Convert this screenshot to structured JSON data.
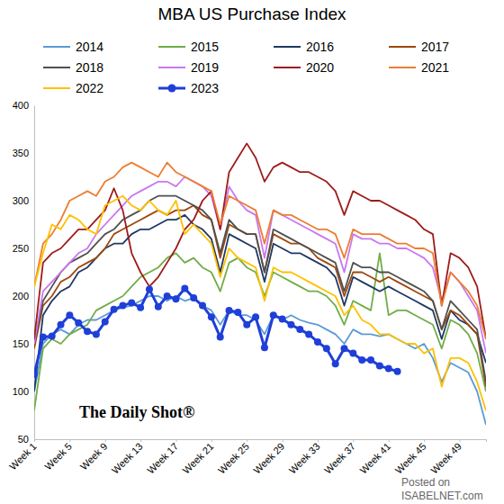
{
  "chart_data": {
    "type": "line",
    "title": "MBA US Purchase Index",
    "x": [
      1,
      2,
      3,
      4,
      5,
      6,
      7,
      8,
      9,
      10,
      11,
      12,
      13,
      14,
      15,
      16,
      17,
      18,
      19,
      20,
      21,
      22,
      23,
      24,
      25,
      26,
      27,
      28,
      29,
      30,
      31,
      32,
      33,
      34,
      35,
      36,
      37,
      38,
      39,
      40,
      41,
      42,
      43,
      44,
      45,
      46,
      47,
      48,
      49,
      50,
      51,
      52
    ],
    "xlim": [
      1,
      52
    ],
    "xticks": [
      {
        "value": 1,
        "label": "Week 1"
      },
      {
        "value": 5,
        "label": "Week 5"
      },
      {
        "value": 9,
        "label": "Week 9"
      },
      {
        "value": 13,
        "label": "Week 13"
      },
      {
        "value": 17,
        "label": "Week 17"
      },
      {
        "value": 21,
        "label": "Week 21"
      },
      {
        "value": 25,
        "label": "Week 25"
      },
      {
        "value": 29,
        "label": "Week 29"
      },
      {
        "value": 33,
        "label": "Week 33"
      },
      {
        "value": 37,
        "label": "Week 37"
      },
      {
        "value": 41,
        "label": "Week 41"
      },
      {
        "value": 45,
        "label": "Week 45"
      },
      {
        "value": 49,
        "label": "Week 49"
      }
    ],
    "ylim": [
      50,
      400
    ],
    "yticks": [
      50,
      100,
      150,
      200,
      250,
      300,
      350,
      400
    ],
    "grid": false,
    "legend": "top",
    "series": [
      {
        "name": "2014",
        "color": "#5b9bd5",
        "values": [
          100,
          150,
          160,
          165,
          160,
          170,
          175,
          175,
          180,
          185,
          188,
          190,
          195,
          200,
          200,
          195,
          200,
          195,
          198,
          190,
          185,
          170,
          185,
          180,
          180,
          175,
          160,
          180,
          175,
          180,
          175,
          172,
          170,
          165,
          160,
          150,
          165,
          160,
          160,
          158,
          160,
          155,
          150,
          145,
          150,
          135,
          110,
          130,
          125,
          120,
          100,
          65
        ]
      },
      {
        "name": "2015",
        "color": "#70ad47",
        "values": [
          80,
          145,
          155,
          150,
          160,
          165,
          170,
          185,
          190,
          195,
          200,
          210,
          220,
          225,
          230,
          240,
          245,
          235,
          240,
          230,
          225,
          205,
          235,
          240,
          230,
          225,
          200,
          225,
          220,
          215,
          210,
          205,
          205,
          200,
          190,
          170,
          195,
          190,
          185,
          245,
          180,
          185,
          185,
          180,
          175,
          170,
          145,
          175,
          170,
          160,
          140,
          100
        ]
      },
      {
        "name": "2016",
        "color": "#1f3864",
        "values": [
          100,
          180,
          195,
          205,
          210,
          225,
          230,
          240,
          250,
          255,
          255,
          265,
          270,
          270,
          275,
          280,
          280,
          285,
          275,
          270,
          260,
          225,
          265,
          260,
          255,
          250,
          215,
          255,
          250,
          245,
          245,
          240,
          235,
          230,
          220,
          190,
          220,
          215,
          210,
          205,
          210,
          205,
          200,
          195,
          190,
          185,
          155,
          185,
          175,
          170,
          160,
          130
        ]
      },
      {
        "name": "2017",
        "color": "#9e480e",
        "values": [
          145,
          190,
          200,
          215,
          220,
          230,
          235,
          240,
          250,
          265,
          270,
          275,
          280,
          285,
          290,
          285,
          290,
          290,
          295,
          285,
          280,
          240,
          275,
          270,
          265,
          265,
          225,
          265,
          260,
          255,
          255,
          250,
          240,
          235,
          230,
          200,
          225,
          225,
          220,
          215,
          220,
          215,
          210,
          205,
          200,
          195,
          165,
          185,
          180,
          170,
          160,
          105
        ]
      },
      {
        "name": "2018",
        "color": "#505050",
        "values": [
          150,
          195,
          210,
          225,
          235,
          240,
          245,
          255,
          265,
          270,
          280,
          285,
          290,
          300,
          305,
          305,
          305,
          300,
          295,
          290,
          280,
          245,
          280,
          270,
          265,
          265,
          225,
          270,
          265,
          260,
          255,
          250,
          245,
          240,
          235,
          205,
          235,
          230,
          230,
          225,
          225,
          220,
          215,
          210,
          205,
          195,
          165,
          195,
          185,
          175,
          165,
          110
        ]
      },
      {
        "name": "2019",
        "color": "#c878f0",
        "values": [
          150,
          205,
          215,
          225,
          235,
          245,
          250,
          265,
          275,
          285,
          295,
          305,
          310,
          315,
          320,
          320,
          315,
          325,
          320,
          315,
          305,
          270,
          315,
          300,
          290,
          285,
          240,
          290,
          285,
          280,
          275,
          270,
          265,
          260,
          255,
          225,
          265,
          260,
          260,
          255,
          255,
          250,
          250,
          245,
          240,
          230,
          195,
          225,
          215,
          200,
          185,
          140
        ]
      },
      {
        "name": "2020",
        "color": "#9e1b1b",
        "values": [
          155,
          235,
          245,
          250,
          260,
          270,
          270,
          280,
          290,
          313,
          290,
          245,
          225,
          210,
          220,
          235,
          250,
          270,
          280,
          300,
          310,
          270,
          330,
          345,
          360,
          345,
          320,
          335,
          340,
          335,
          330,
          330,
          325,
          320,
          310,
          285,
          310,
          305,
          300,
          300,
          295,
          290,
          285,
          280,
          270,
          265,
          190,
          245,
          240,
          230,
          210,
          155
        ]
      },
      {
        "name": "2021",
        "color": "#ed7d31",
        "values": [
          210,
          255,
          265,
          280,
          300,
          305,
          310,
          305,
          320,
          325,
          335,
          340,
          335,
          330,
          325,
          340,
          330,
          325,
          320,
          315,
          310,
          275,
          305,
          300,
          295,
          290,
          255,
          290,
          285,
          285,
          280,
          275,
          270,
          270,
          265,
          240,
          270,
          265,
          265,
          265,
          260,
          255,
          255,
          250,
          250,
          245,
          190,
          225,
          215,
          205,
          190,
          155
        ]
      },
      {
        "name": "2022",
        "color": "#ffc000",
        "values": [
          210,
          245,
          275,
          270,
          285,
          280,
          270,
          265,
          295,
          300,
          305,
          295,
          290,
          300,
          290,
          285,
          300,
          265,
          275,
          265,
          255,
          220,
          250,
          240,
          235,
          230,
          195,
          230,
          225,
          225,
          220,
          215,
          210,
          205,
          200,
          180,
          190,
          175,
          170,
          160,
          160,
          155,
          150,
          150,
          140,
          145,
          105,
          135,
          135,
          130,
          110,
          80
        ]
      },
      {
        "name": "2023",
        "color": "#1f3fd8",
        "marker": "circle",
        "values": [
          118,
          157,
          158,
          170,
          180,
          172,
          163,
          160,
          173,
          186,
          190,
          193,
          188,
          207,
          189,
          200,
          197,
          208,
          198,
          190,
          178,
          157,
          185,
          183,
          170,
          178,
          146,
          180,
          176,
          170,
          165,
          160,
          152,
          145,
          129,
          145,
          140,
          133,
          133,
          127,
          124,
          121,
          null,
          null,
          null,
          null,
          null,
          null,
          null,
          null,
          null,
          null
        ]
      }
    ],
    "annotations": [
      {
        "text": "The Daily Shot®"
      },
      {
        "text": "Posted on"
      },
      {
        "text": "ISABELNET.com"
      }
    ]
  }
}
